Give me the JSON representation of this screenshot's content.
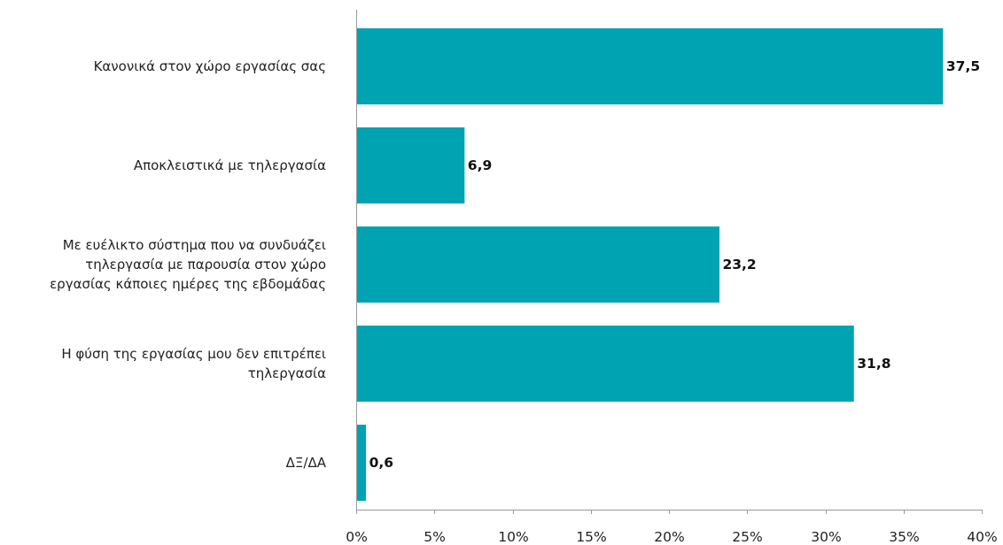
{
  "chart_data": {
    "type": "bar",
    "orientation": "horizontal",
    "categories": [
      [
        "Κανονικά στον χώρο εργασίας σας"
      ],
      [
        "Αποκλειστικά με τηλεργασία"
      ],
      [
        "Με ευέλικτο σύστημα που να συνδυάζει",
        "τηλεργασία με παρουσία στον χώρο",
        "εργασίας κάποιες ημέρες της εβδομάδας"
      ],
      [
        "Η φύση της εργασίας μου δεν επιτρέπει",
        "τηλεργασία"
      ],
      [
        "ΔΞ/ΔΑ"
      ]
    ],
    "values": [
      37.5,
      6.9,
      23.2,
      31.8,
      0.6
    ],
    "data_labels": [
      "37,5",
      "6,9",
      "23,2",
      "31,8",
      "0,6"
    ],
    "xlim": [
      0,
      40
    ],
    "x_ticks": [
      0,
      5,
      10,
      15,
      20,
      25,
      30,
      35,
      40
    ],
    "x_tick_labels": [
      "0%",
      "5%",
      "10%",
      "15%",
      "20%",
      "25%",
      "30%",
      "35%",
      "40%"
    ],
    "bar_color": "#00a3b1",
    "title": "",
    "xlabel": "",
    "ylabel": "",
    "grid": false,
    "legend": "none"
  }
}
